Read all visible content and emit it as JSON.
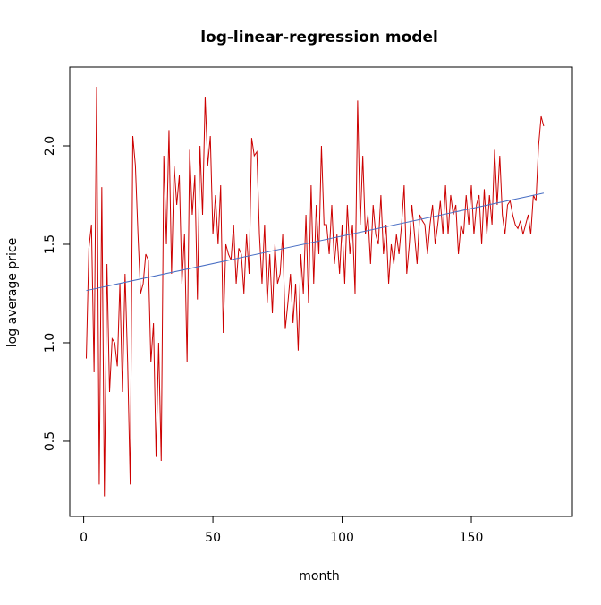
{
  "chart_data": {
    "type": "line",
    "title": "log-linear-regression model",
    "xlabel": "month",
    "ylabel": "log average price",
    "xlim": [
      -5.4,
      189.1
    ],
    "ylim": [
      0.118,
      2.4
    ],
    "xticks": [
      0,
      50,
      100,
      150
    ],
    "yticks": [
      0.5,
      {
        "value": 1.0,
        "label": "1.0"
      },
      1.5,
      {
        "value": 2.0,
        "label": "2.0"
      }
    ],
    "series": [
      {
        "color": "#cc0000",
        "x": [
          1,
          2,
          3,
          4,
          5,
          6,
          7,
          8,
          9,
          10,
          11,
          12,
          13,
          14,
          15,
          16,
          17,
          18,
          19,
          20,
          21,
          22,
          23,
          24,
          25,
          26,
          27,
          28,
          29,
          30,
          31,
          32,
          33,
          34,
          35,
          36,
          37,
          38,
          39,
          40,
          41,
          42,
          43,
          44,
          45,
          46,
          47,
          48,
          49,
          50,
          51,
          52,
          53,
          54,
          55,
          56,
          57,
          58,
          59,
          60,
          61,
          62,
          63,
          64,
          65,
          66,
          67,
          68,
          69,
          70,
          71,
          72,
          73,
          74,
          75,
          76,
          77,
          78,
          79,
          80,
          81,
          82,
          83,
          84,
          85,
          86,
          87,
          88,
          89,
          90,
          91,
          92,
          93,
          94,
          95,
          96,
          97,
          98,
          99,
          100,
          101,
          102,
          103,
          104,
          105,
          106,
          107,
          108,
          109,
          110,
          111,
          112,
          113,
          114,
          115,
          116,
          117,
          118,
          119,
          120,
          121,
          122,
          123,
          124,
          125,
          126,
          127,
          128,
          129,
          130,
          131,
          132,
          133,
          134,
          135,
          136,
          137,
          138,
          139,
          140,
          141,
          142,
          143,
          144,
          145,
          146,
          147,
          148,
          149,
          150,
          151,
          152,
          153,
          154,
          155,
          156,
          157,
          158,
          159,
          160,
          161,
          162,
          163,
          164,
          165,
          166,
          167,
          168,
          169,
          170,
          171,
          172,
          173,
          174,
          175,
          176,
          177,
          178
        ],
        "values": [
          0.92,
          1.48,
          1.6,
          0.85,
          2.3,
          0.28,
          1.79,
          0.22,
          1.4,
          0.75,
          1.02,
          1.0,
          0.88,
          1.3,
          0.75,
          1.35,
          0.9,
          0.28,
          2.05,
          1.9,
          1.55,
          1.25,
          1.3,
          1.45,
          1.42,
          0.9,
          1.1,
          0.42,
          1.0,
          0.4,
          1.95,
          1.5,
          2.08,
          1.35,
          1.9,
          1.7,
          1.85,
          1.3,
          1.55,
          0.9,
          1.98,
          1.65,
          1.85,
          1.22,
          2.0,
          1.65,
          2.25,
          1.9,
          2.05,
          1.55,
          1.75,
          1.5,
          1.8,
          1.05,
          1.5,
          1.45,
          1.42,
          1.6,
          1.3,
          1.48,
          1.45,
          1.25,
          1.55,
          1.35,
          2.04,
          1.95,
          1.97,
          1.55,
          1.3,
          1.6,
          1.2,
          1.45,
          1.15,
          1.5,
          1.3,
          1.35,
          1.55,
          1.07,
          1.2,
          1.35,
          1.1,
          1.3,
          0.96,
          1.45,
          1.25,
          1.65,
          1.2,
          1.8,
          1.3,
          1.7,
          1.45,
          2.0,
          1.6,
          1.6,
          1.45,
          1.7,
          1.4,
          1.55,
          1.35,
          1.6,
          1.3,
          1.7,
          1.45,
          1.6,
          1.25,
          2.23,
          1.6,
          1.95,
          1.55,
          1.65,
          1.4,
          1.7,
          1.55,
          1.5,
          1.75,
          1.45,
          1.6,
          1.3,
          1.5,
          1.4,
          1.55,
          1.45,
          1.6,
          1.8,
          1.35,
          1.5,
          1.7,
          1.55,
          1.4,
          1.65,
          1.62,
          1.6,
          1.45,
          1.6,
          1.7,
          1.5,
          1.6,
          1.72,
          1.55,
          1.8,
          1.55,
          1.75,
          1.65,
          1.7,
          1.45,
          1.6,
          1.55,
          1.75,
          1.6,
          1.8,
          1.55,
          1.7,
          1.75,
          1.5,
          1.78,
          1.55,
          1.75,
          1.6,
          1.98,
          1.7,
          1.95,
          1.65,
          1.55,
          1.7,
          1.72,
          1.65,
          1.6,
          1.58,
          1.62,
          1.55,
          1.6,
          1.65,
          1.55,
          1.75,
          1.72,
          2.0,
          2.15,
          2.1
        ]
      },
      {
        "color": "#4a6fc4",
        "x": [
          1,
          178
        ],
        "values": [
          1.265,
          1.76
        ]
      }
    ]
  }
}
